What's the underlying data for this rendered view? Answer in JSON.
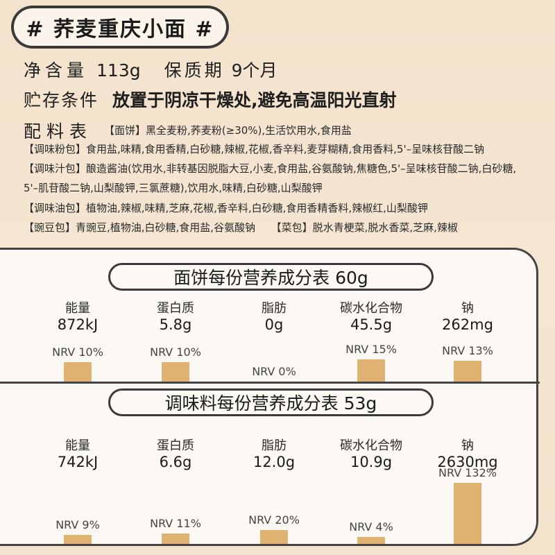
{
  "title": "# 荞麦重庆小面 #",
  "info": {
    "net_label": "净含量",
    "net_value": "113g",
    "shelf_label": "保质期",
    "shelf_value": "9个月",
    "storage_label": "贮存条件",
    "storage_value": "放置于阴凉干燥处,避免高温阳光直射"
  },
  "ingredients": {
    "heading": "配料表",
    "lines": [
      "【面饼】黑全麦粉,荞麦粉(≥30%),生活饮用水,食用盐",
      "【调味粉包】食用盐,味精,食用香精,白砂糖,辣椒,花椒,香辛料,麦芽糊精,食用香料,5'–呈味核苷酸二钠",
      "【调味汁包】酿造酱油(饮用水,非转基因脱脂大豆,小麦,食用盐,谷氨酸钠,焦糖色,5'–呈味核苷酸二钠,白砂糖,",
      "5'–肌苷酸二钠,山梨酸钾,三氯蔗糖),饮用水,味精,白砂糖,山梨酸钾",
      "【调味油包】植物油,辣椒,味精,芝麻,花椒,香辛料,白砂糖,食用香精香料,辣椒红,山梨酸钾",
      "【豌豆包】青豌豆,植物油,白砂糖,食用盐,谷氨酸钠　　【菜包】脱水青梗菜,脱水香菜,芝麻,辣椒"
    ]
  },
  "section1": {
    "title": "面饼每份营养成分表 60g",
    "items": [
      {
        "name": "能量",
        "value": "872kJ",
        "nrv_label": "NRV 10%",
        "nrv": 10
      },
      {
        "name": "蛋白质",
        "value": "5.8g",
        "nrv_label": "NRV 10%",
        "nrv": 10
      },
      {
        "name": "脂肪",
        "value": "0g",
        "nrv_label": "NRV 0%",
        "nrv": 0
      },
      {
        "name": "碳水化合物",
        "value": "45.5g",
        "nrv_label": "NRV 15%",
        "nrv": 15
      },
      {
        "name": "钠",
        "value": "262mg",
        "nrv_label": "NRV 13%",
        "nrv": 13
      }
    ]
  },
  "section2": {
    "title": "调味料每份营养成分表 53g",
    "items": [
      {
        "name": "能量",
        "value": "742kJ",
        "nrv_label": "NRV 9%",
        "nrv": 9
      },
      {
        "name": "蛋白质",
        "value": "6.6g",
        "nrv_label": "NRV 11%",
        "nrv": 11
      },
      {
        "name": "脂肪",
        "value": "12.0g",
        "nrv_label": "NRV 20%",
        "nrv": 20
      },
      {
        "name": "碳水化合物",
        "value": "10.9g",
        "nrv_label": "NRV 4%",
        "nrv": 4
      },
      {
        "name": "钠",
        "value": "2630mg",
        "nrv_label": "NRV 132%",
        "nrv": 132
      }
    ]
  },
  "colors": {
    "bar": "#e0b272",
    "outline": "#3a3a3a",
    "panel": "#fcf8f3"
  }
}
